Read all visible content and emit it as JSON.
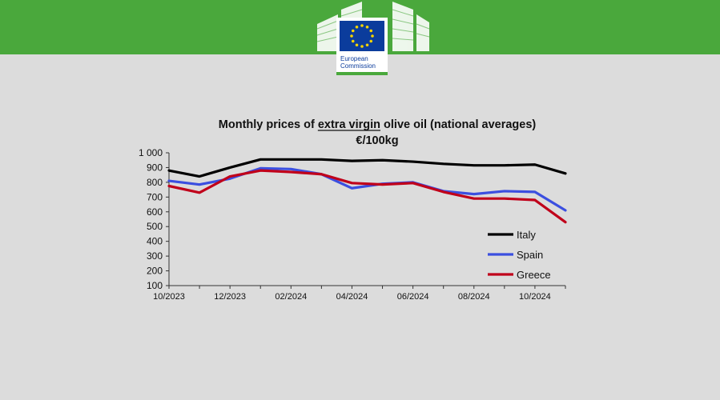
{
  "header": {
    "brand_color": "#4aa83c",
    "logo": {
      "icon": "eu-flag-building-logo",
      "line1": "European",
      "line2": "Commission"
    }
  },
  "chart_data": {
    "type": "line",
    "title": "Monthly prices of extra virgin olive oil (national averages)",
    "title_underlined": "extra virgin",
    "subtitle": "€/100kg",
    "xlabel": "",
    "ylabel": "",
    "ylim": [
      100,
      1000
    ],
    "yticks": [
      "100",
      "200",
      "300",
      "400",
      "500",
      "600",
      "700",
      "800",
      "900",
      "1 000"
    ],
    "categories": [
      "10/2023",
      "11/2023",
      "12/2023",
      "01/2024",
      "02/2024",
      "03/2024",
      "04/2024",
      "05/2024",
      "06/2024",
      "07/2024",
      "08/2024",
      "09/2024",
      "10/2024",
      "11/2024"
    ],
    "xtick_labels": [
      "10/2023",
      "12/2023",
      "02/2024",
      "04/2024",
      "06/2024",
      "08/2024",
      "10/2024"
    ],
    "grid": false,
    "legend_position": "bottom-right",
    "series": [
      {
        "name": "Italy",
        "color": "#000000",
        "values": [
          880,
          840,
          900,
          955,
          955,
          955,
          945,
          950,
          940,
          925,
          915,
          915,
          920,
          860
        ]
      },
      {
        "name": "Spain",
        "color": "#3b4fe0",
        "values": [
          810,
          785,
          825,
          895,
          890,
          855,
          760,
          790,
          800,
          740,
          720,
          740,
          735,
          610
        ]
      },
      {
        "name": "Greece",
        "color": "#c0001a",
        "values": [
          775,
          730,
          840,
          880,
          870,
          855,
          795,
          785,
          795,
          735,
          690,
          690,
          680,
          530
        ]
      }
    ]
  }
}
